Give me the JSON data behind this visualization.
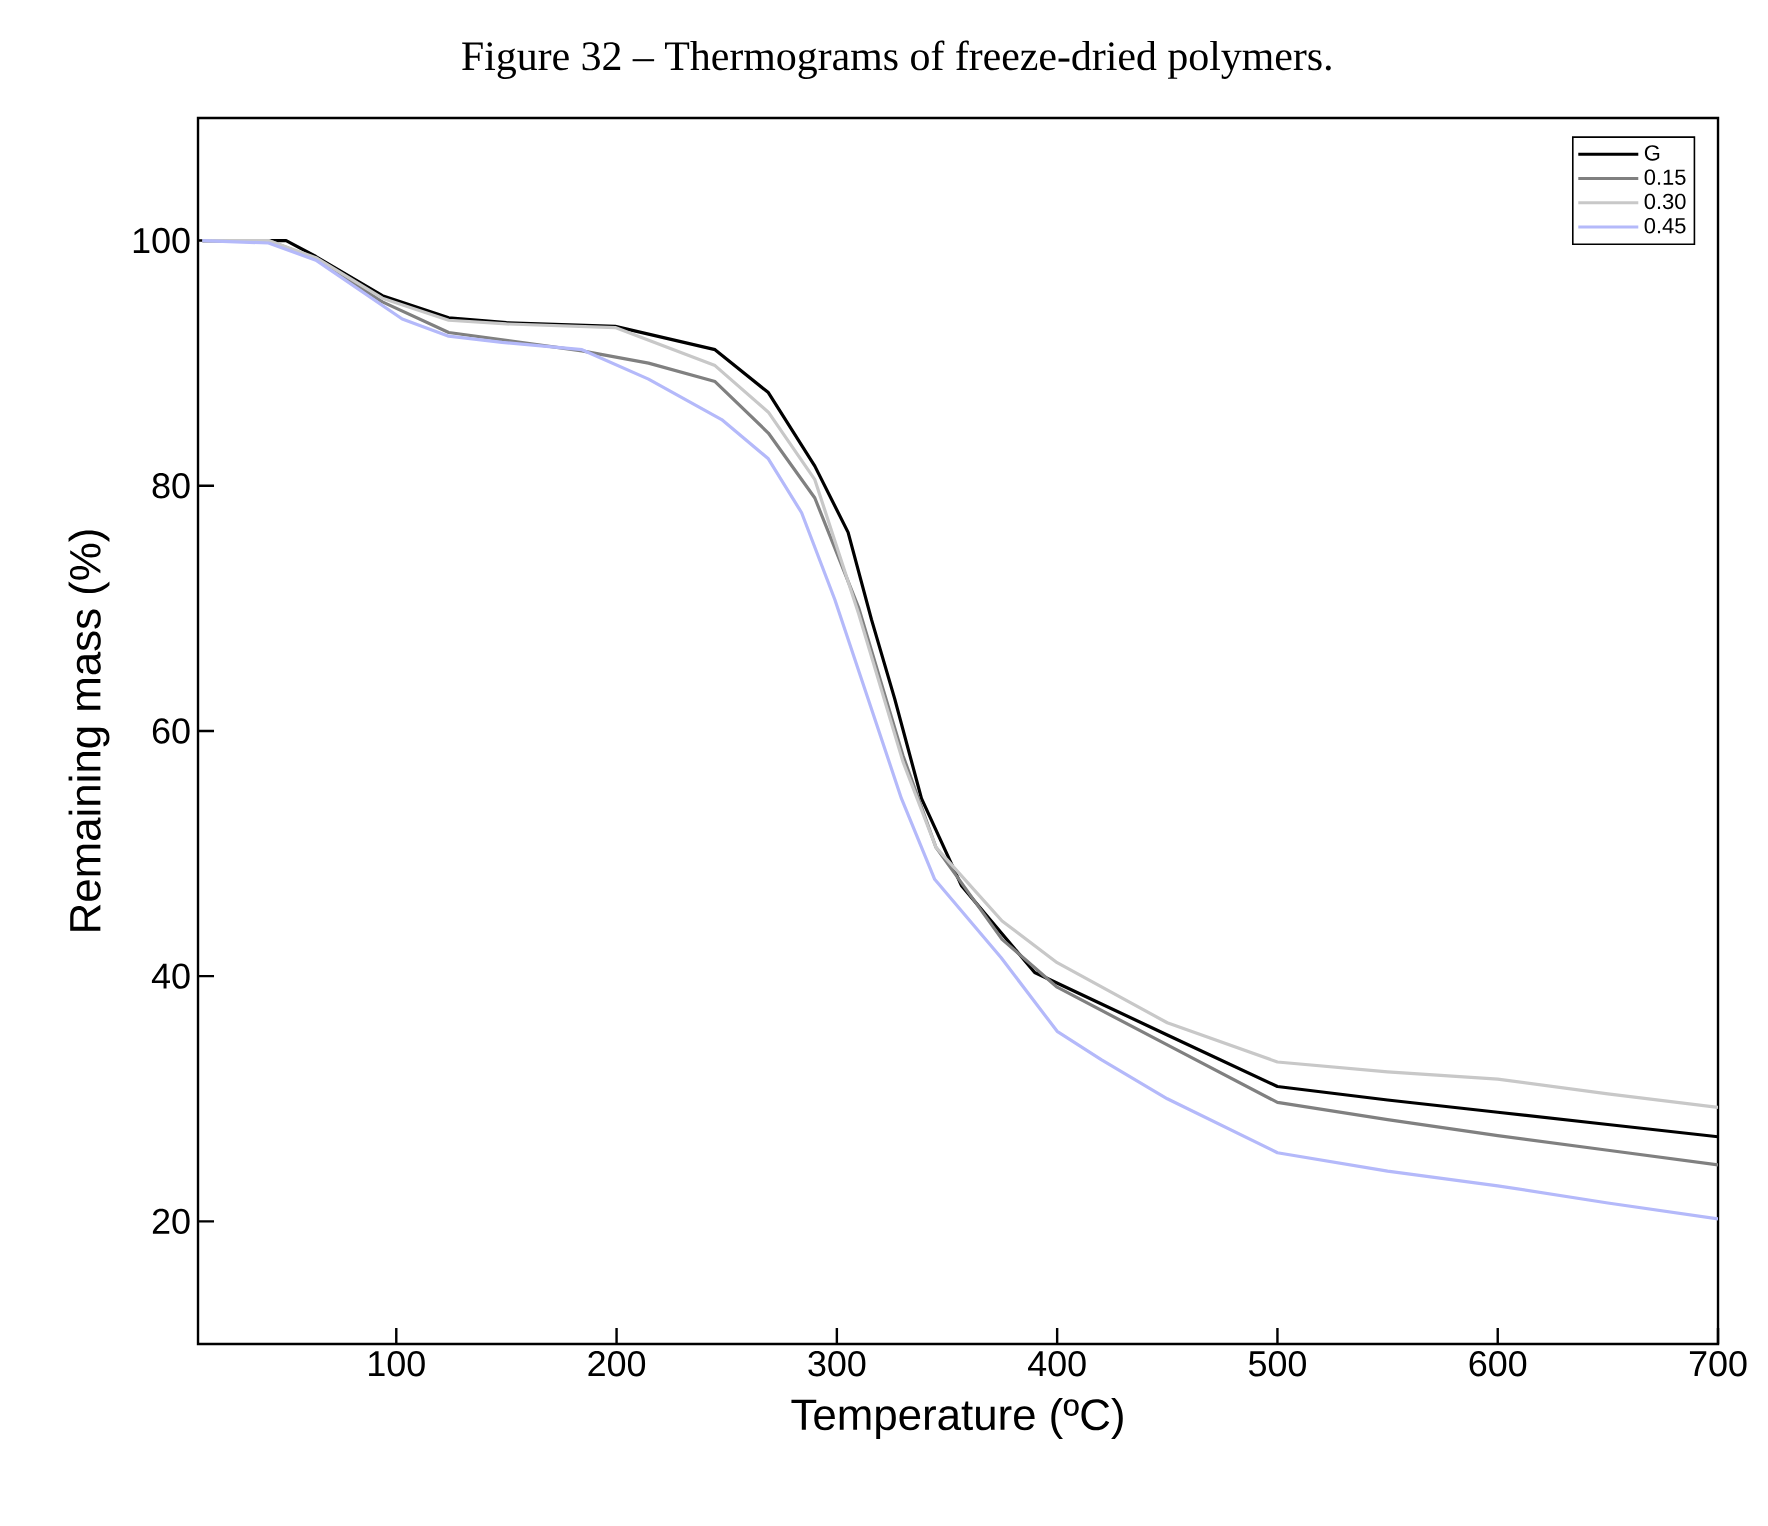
{
  "chart_data": {
    "type": "line",
    "title": "Figure 32 – Thermograms of freeze-dried polymers.",
    "xlabel": "Temperature (ºC)",
    "ylabel": "Remaining mass (%)",
    "xlim": [
      10,
      700
    ],
    "ylim": [
      10,
      110
    ],
    "xticks": [
      100,
      200,
      300,
      400,
      500,
      600,
      700
    ],
    "yticks": [
      20,
      40,
      60,
      80,
      100
    ],
    "legend": "top right",
    "grid": false,
    "marker": "none",
    "line_style": "solid",
    "series": [
      {
        "name": "G",
        "color": "#000000",
        "x": [
          12,
          50,
          63.5,
          93.7,
          123.8,
          150,
          199.4,
          244.7,
          268.9,
          290,
          305.1,
          315.7,
          326.3,
          338.4,
          356.5,
          389.8,
          417,
          450,
          500,
          550,
          600,
          650,
          700
        ],
        "values": [
          100,
          100,
          98.7,
          95.5,
          93.7,
          93.3,
          93.0,
          91.1,
          87.6,
          81.6,
          76.2,
          69.1,
          62.6,
          54.5,
          47.4,
          40.3,
          38.0,
          35.2,
          31.0,
          29.9,
          28.9,
          27.9,
          26.9
        ]
      },
      {
        "name": "0.15",
        "color": "#808080",
        "x": [
          12,
          42,
          63.5,
          93.7,
          123.8,
          184.3,
          214.5,
          244.7,
          268.9,
          290,
          310,
          330,
          345,
          375,
          400,
          450,
          500,
          550,
          600,
          650,
          700
        ],
        "values": [
          100,
          100,
          98.5,
          95,
          92.5,
          91.0,
          90.0,
          88.5,
          84.3,
          79,
          70,
          58,
          50.5,
          43,
          39.1,
          34.4,
          29.7,
          28.3,
          27.0,
          25.8,
          24.6
        ]
      },
      {
        "name": "0.30",
        "color": "#c8c8c8",
        "x": [
          12,
          42,
          63.5,
          93.7,
          123.8,
          150,
          199.4,
          244.7,
          268.9,
          290,
          310,
          330,
          345,
          375,
          400,
          450,
          500,
          550,
          600,
          650,
          700
        ],
        "values": [
          100,
          100,
          98.6,
          95.3,
          93.5,
          93.2,
          92.9,
          89.8,
          86,
          80.5,
          69.5,
          57.5,
          50.5,
          44.5,
          41.1,
          36.2,
          33.0,
          32.2,
          31.6,
          30.4,
          29.3
        ]
      },
      {
        "name": "0.45",
        "color": "#b4b9fa",
        "x": [
          12,
          42,
          63.5,
          102.7,
          123.8,
          148,
          184.3,
          214.5,
          247.7,
          268.9,
          284,
          299.1,
          314.2,
          329.3,
          344.4,
          374.6,
          400,
          420,
          450,
          500,
          550,
          600,
          650,
          700
        ],
        "values": [
          100,
          99.8,
          98.4,
          93.6,
          92.2,
          91.7,
          91.1,
          88.7,
          85.4,
          82.2,
          77.8,
          70.7,
          62.6,
          54.5,
          47.9,
          41.5,
          35.5,
          33.2,
          30.0,
          25.6,
          24.1,
          22.9,
          21.5,
          20.2
        ]
      }
    ]
  }
}
